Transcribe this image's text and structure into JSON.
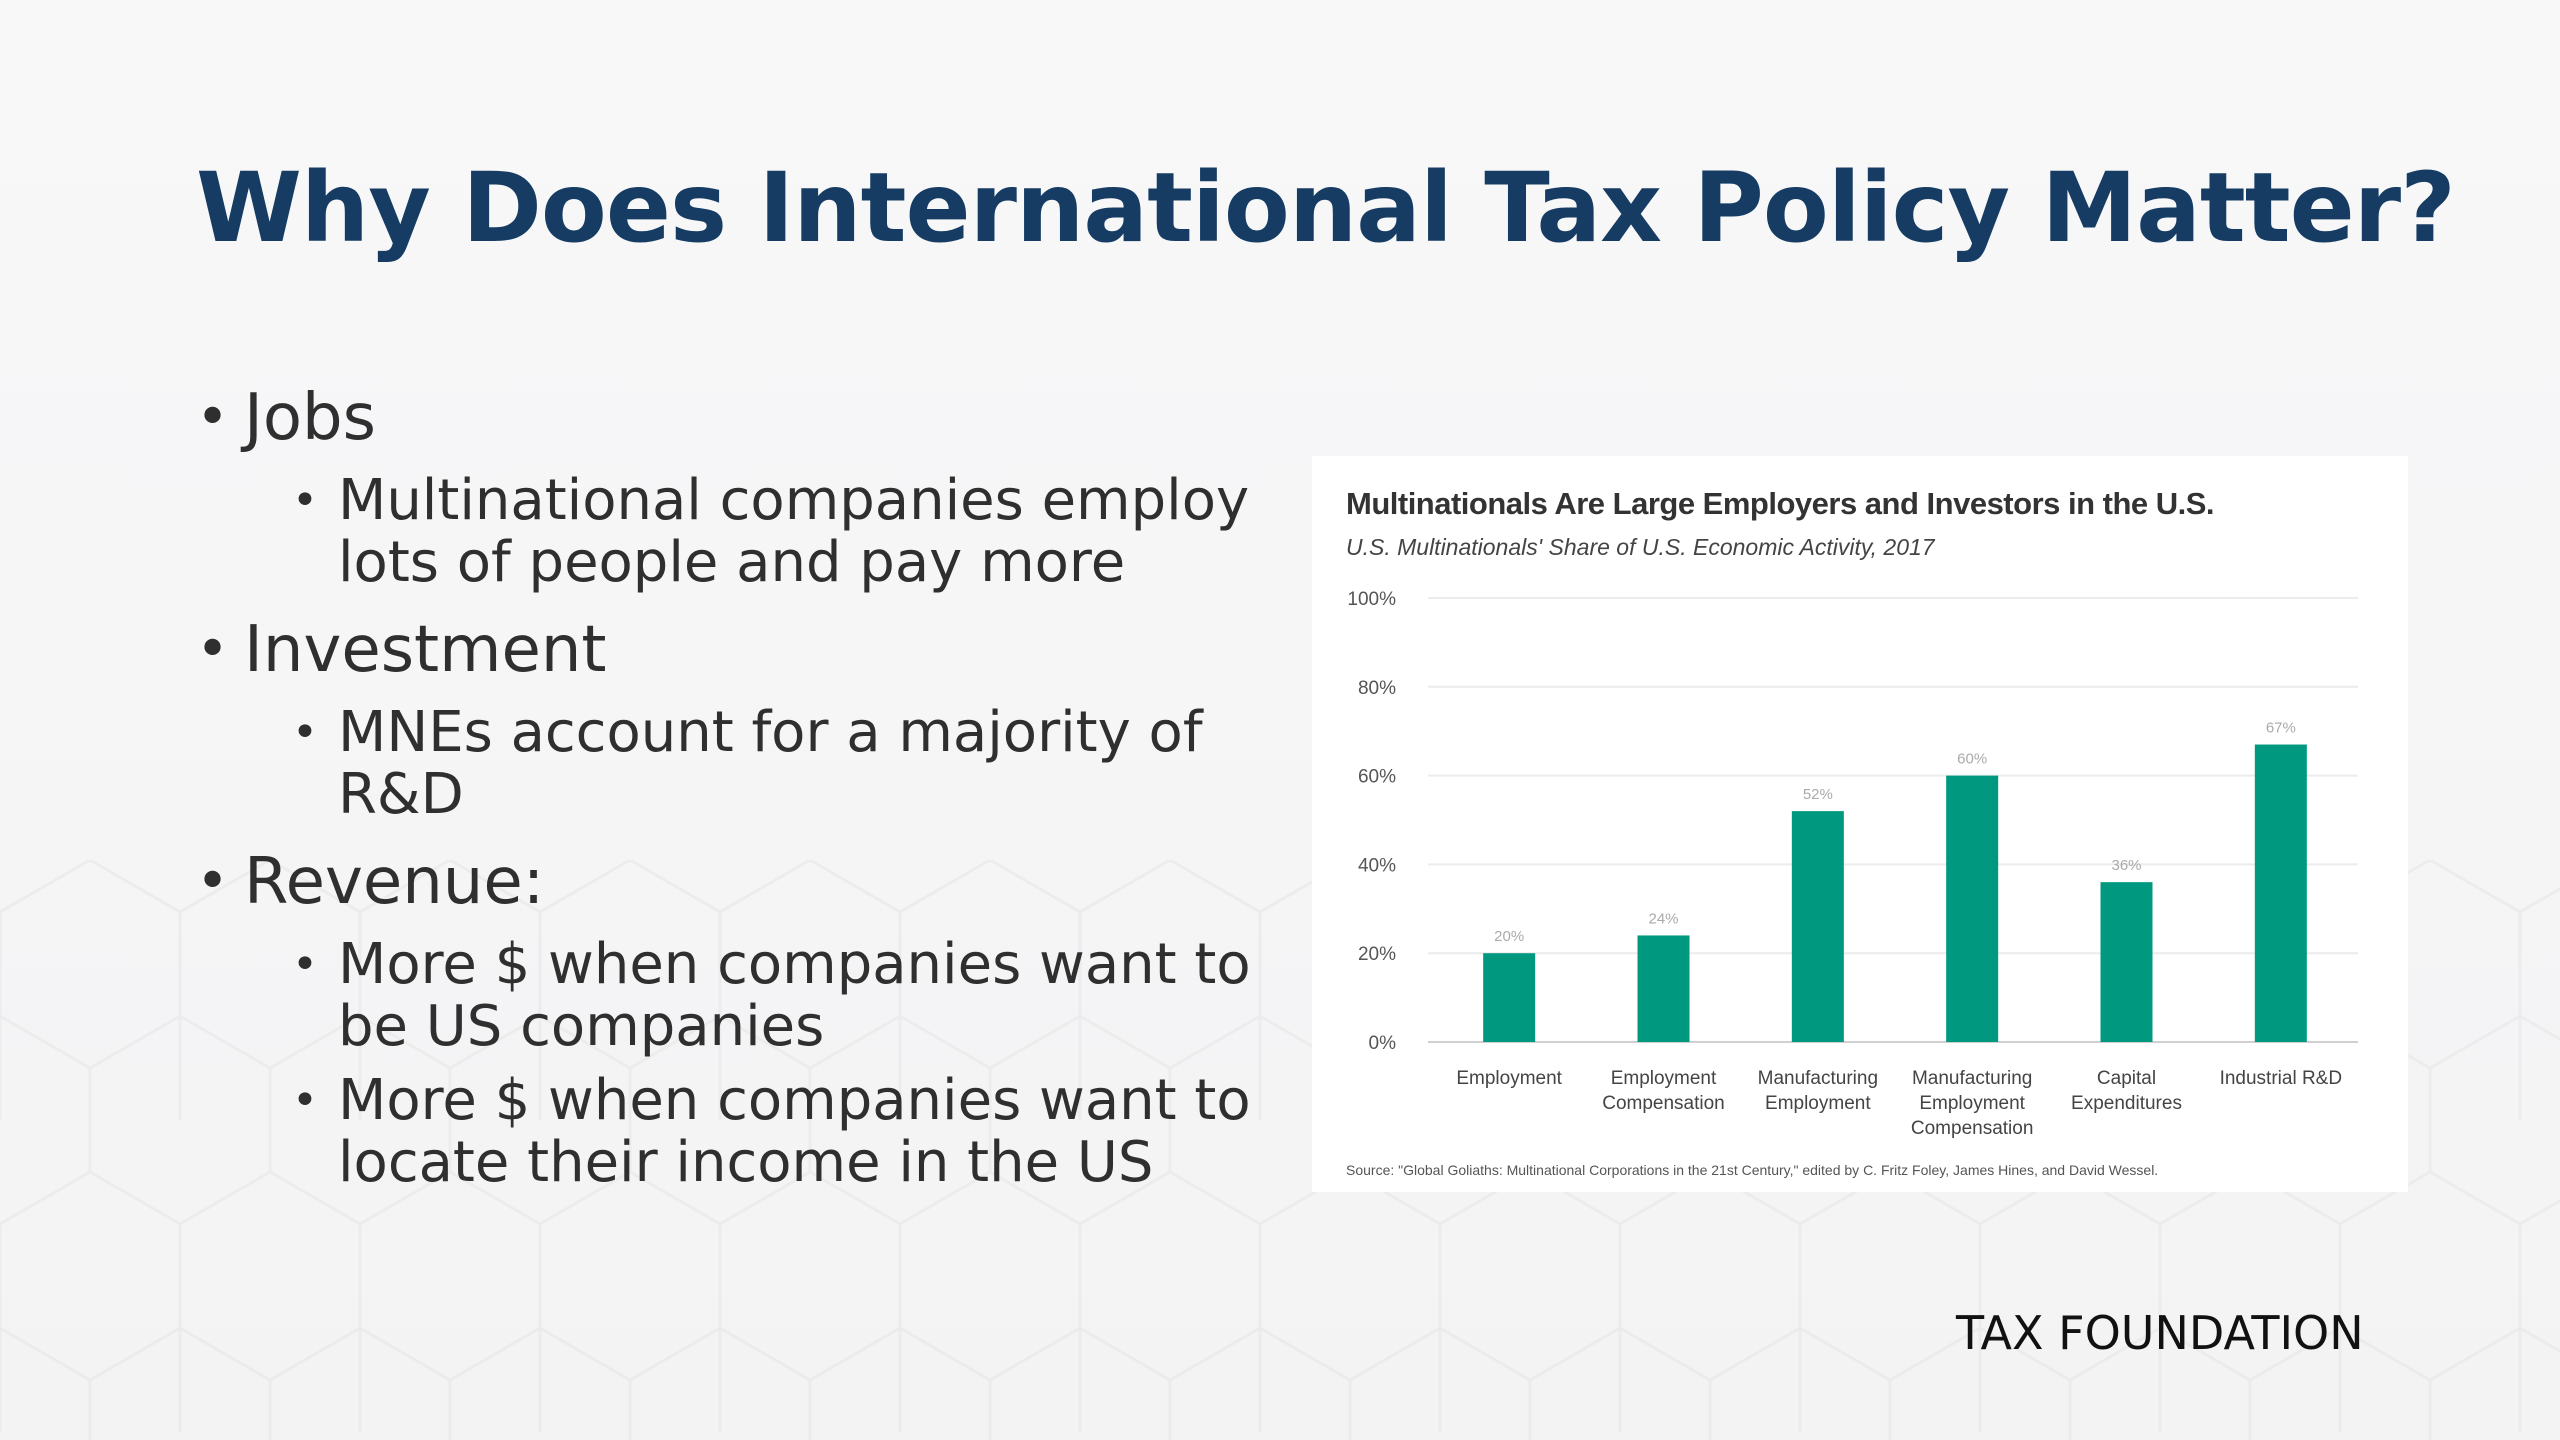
{
  "slide": {
    "title": "Why Does International Tax Policy Matter?",
    "bullets": [
      {
        "text": "Jobs",
        "sub": [
          "Multinational companies employ lots of people and pay more"
        ]
      },
      {
        "text": "Investment",
        "sub": [
          "MNEs account for a majority of R&D"
        ]
      },
      {
        "text": "Revenue:",
        "sub": [
          "More $ when companies want to be US companies",
          "More $ when companies want to locate their income in the US"
        ]
      }
    ],
    "brand": "TAX FOUNDATION"
  },
  "colors": {
    "title": "#163c64",
    "bar": "#00997f",
    "text": "#2f2f2f"
  },
  "chart_data": {
    "type": "bar",
    "title": "Multinationals Are Large Employers and Investors in the U.S.",
    "subtitle": "U.S. Multinationals' Share of U.S. Economic Activity, 2017",
    "categories": [
      [
        "Employment"
      ],
      [
        "Employment",
        "Compensation"
      ],
      [
        "Manufacturing",
        "Employment"
      ],
      [
        "Manufacturing",
        "Employment",
        "Compensation"
      ],
      [
        "Capital",
        "Expenditures"
      ],
      [
        "Industrial R&D"
      ]
    ],
    "values": [
      20,
      24,
      52,
      60,
      36,
      67
    ],
    "value_labels": [
      "20%",
      "24%",
      "52%",
      "60%",
      "36%",
      "67%"
    ],
    "ylim": [
      0,
      100
    ],
    "yticks": [
      0,
      20,
      40,
      60,
      80,
      100
    ],
    "ytick_labels": [
      "0%",
      "20%",
      "40%",
      "60%",
      "80%",
      "100%"
    ],
    "grid": true,
    "source": "Source: \"Global Goliaths: Multinational Corporations in the 21st Century,\" edited by C. Fritz Foley, James Hines, and David Wessel."
  }
}
